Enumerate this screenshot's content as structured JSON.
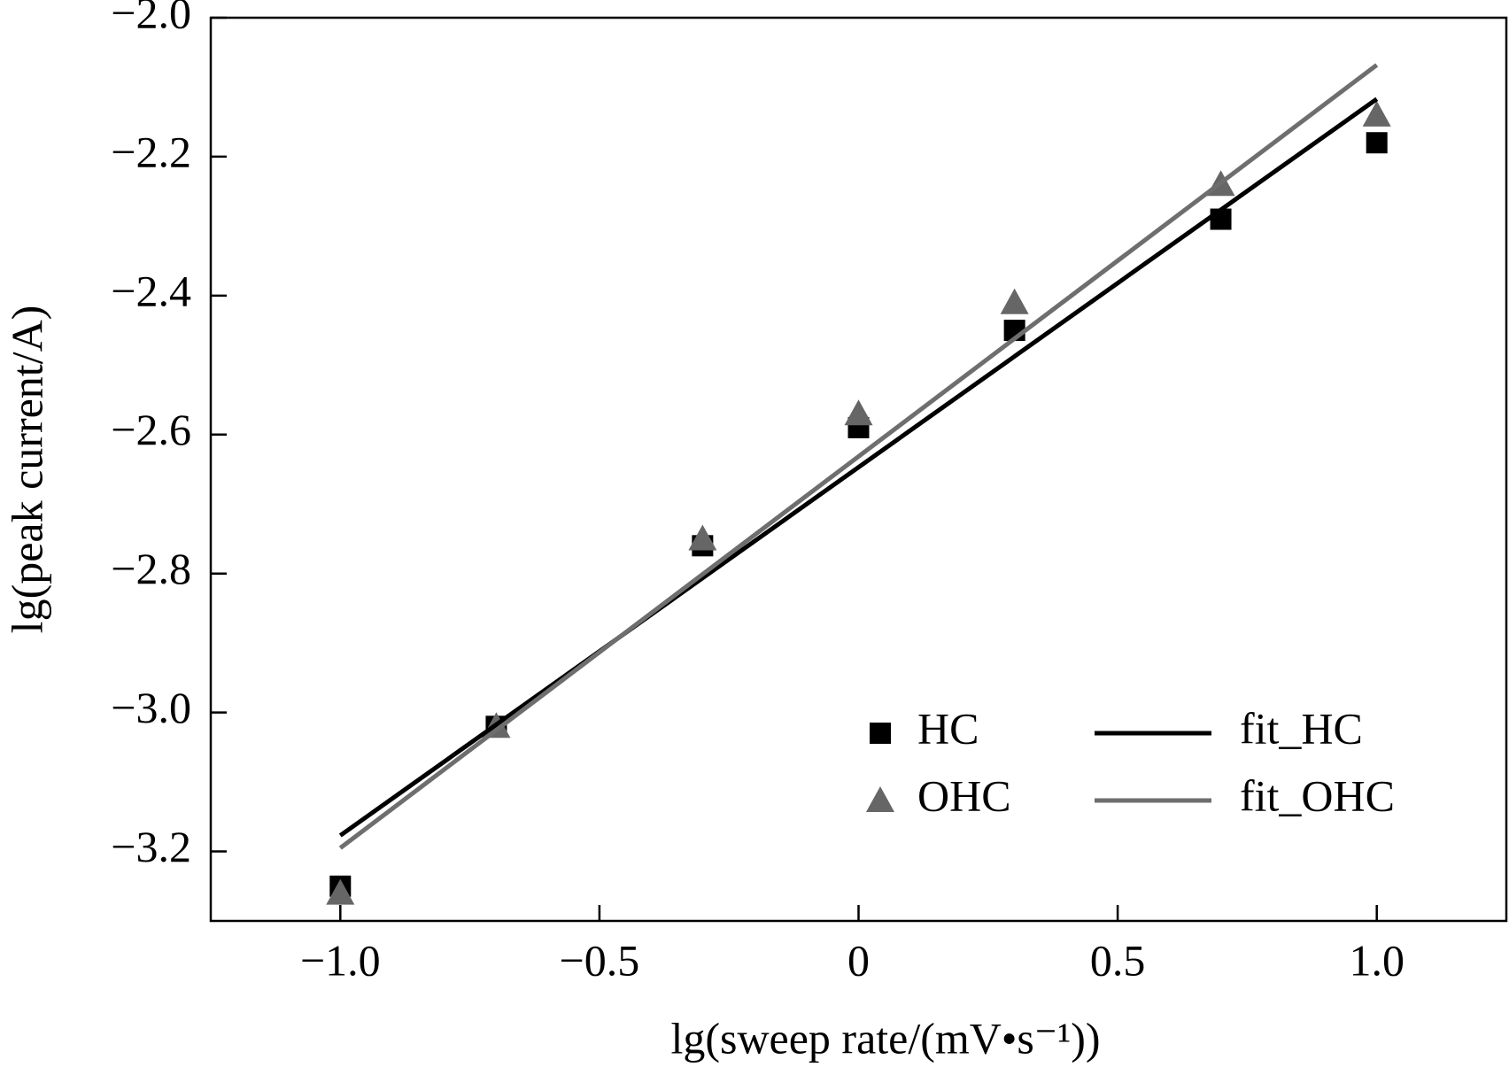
{
  "chart_data": {
    "type": "scatter",
    "xlabel": "lg(sweep rate/(mV•s⁻¹))",
    "ylabel": "lg(peak current/A)",
    "xlim": [
      -1.25,
      1.25
    ],
    "xticks": [
      {
        "value": -1.0,
        "label": "−1.0"
      },
      {
        "value": -0.5,
        "label": "−0.5"
      },
      0,
      0.5,
      {
        "value": 1.0,
        "label": "1.0"
      }
    ],
    "ylim": [
      -3.3,
      -2.0
    ],
    "yticks": [
      {
        "value": -3.2,
        "label": "−3.2"
      },
      {
        "value": -3.0,
        "label": "−3.0"
      },
      {
        "value": -2.8,
        "label": "−2.8"
      },
      {
        "value": -2.6,
        "label": "−2.6"
      },
      {
        "value": -2.4,
        "label": "−2.4"
      },
      {
        "value": -2.2,
        "label": "−2.2"
      },
      {
        "value": -2.0,
        "label": "−2.0"
      }
    ],
    "legend": "lower right",
    "series": [
      {
        "name": "HC",
        "color": "#000000",
        "marker": "square",
        "x": [
          -1,
          -0.699,
          -0.301,
          0,
          0.301,
          0.699,
          1
        ],
        "values": [
          -3.25,
          -3.02,
          -2.76,
          -2.59,
          -2.45,
          -2.29,
          -2.18
        ]
      },
      {
        "name": "OHC",
        "color": "#666666",
        "marker": "triangle",
        "x": [
          -1,
          -0.699,
          -0.301,
          0,
          0.301,
          0.699,
          1
        ],
        "values": [
          -3.26,
          -3.02,
          -2.75,
          -2.57,
          -2.41,
          -2.24,
          -2.14
        ]
      },
      {
        "name": "fit_HC",
        "color": "#000000",
        "marker": "line",
        "x": [
          -1,
          1
        ],
        "values": [
          -3.177,
          -2.117
        ]
      },
      {
        "name": "fit_OHC",
        "color": "#6e6e6e",
        "marker": "line",
        "x": [
          -1,
          1
        ],
        "values": [
          -3.195,
          -2.068
        ]
      }
    ]
  }
}
